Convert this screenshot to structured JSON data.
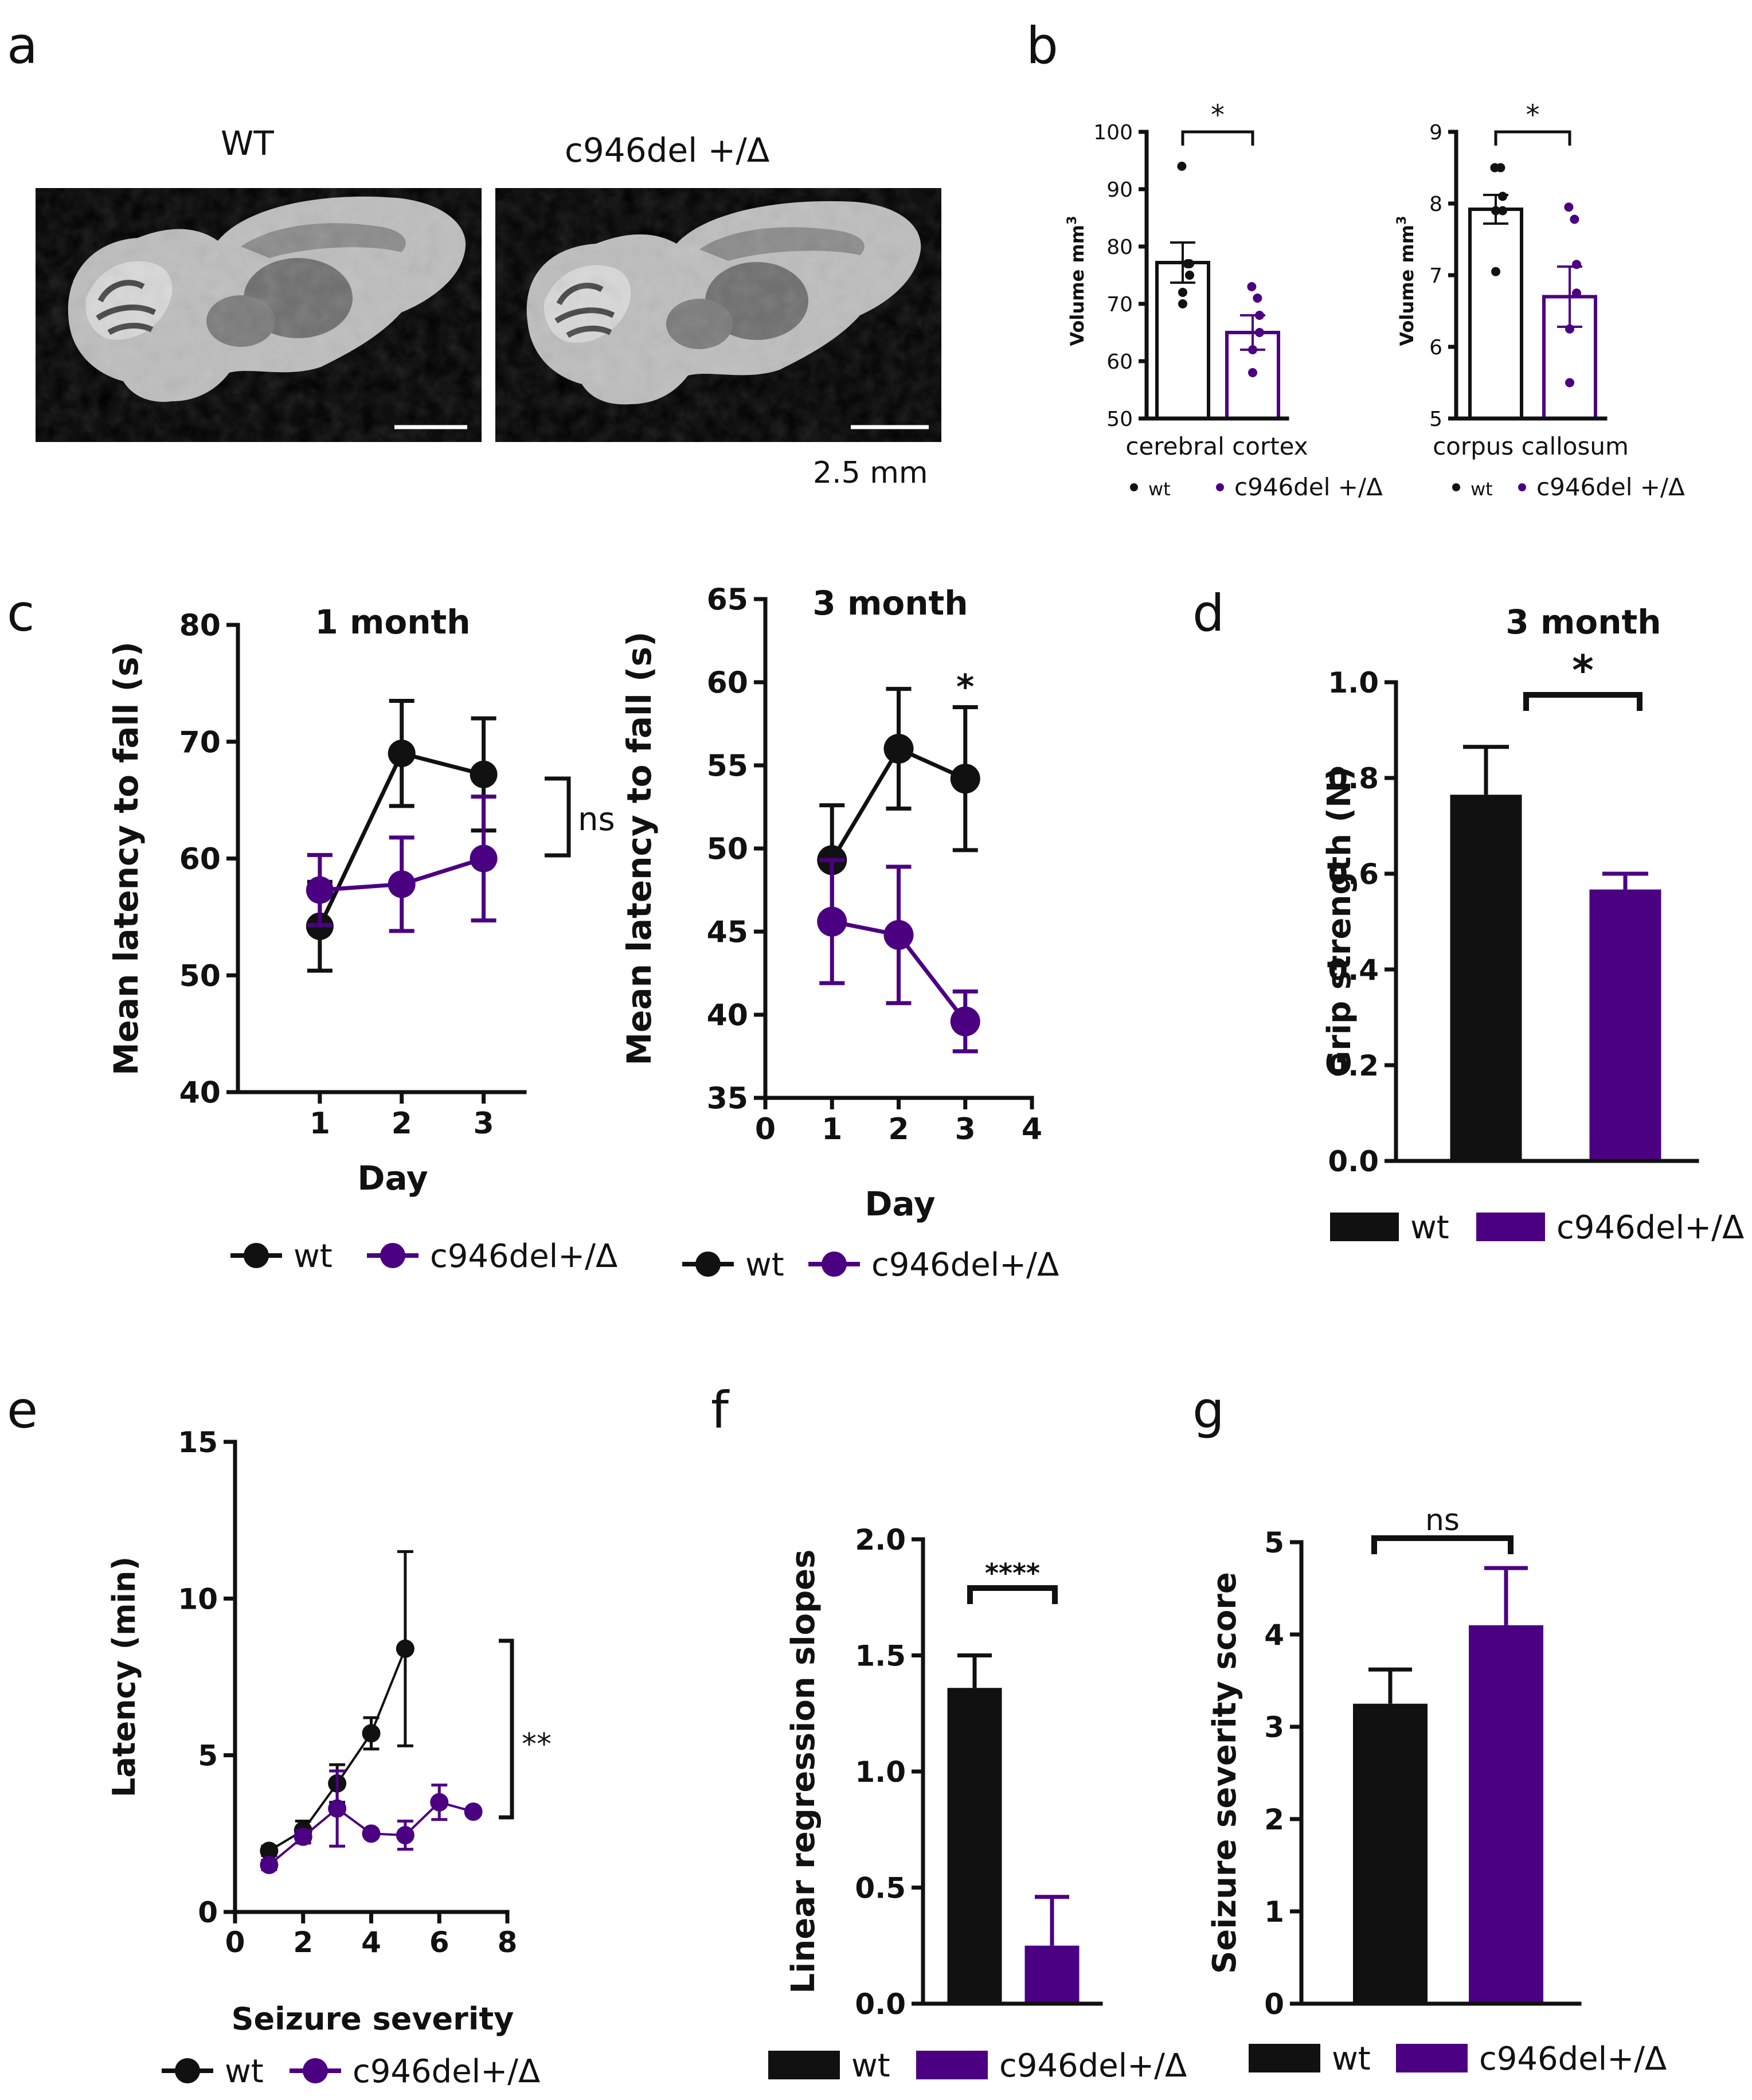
{
  "colors": {
    "wt": "#111111",
    "mut": "#4b0082",
    "mut_light": "#5b1e8c"
  },
  "panel_labels": {
    "a": "a",
    "b": "b",
    "c": "c",
    "d": "d",
    "e": "e",
    "f": "f",
    "g": "g"
  },
  "panel_a": {
    "left_title": "WT",
    "right_title": "c946del +/Δ",
    "scale_label": "2.5 mm"
  },
  "chart_data": [
    {
      "id": "b1",
      "type": "bar",
      "xlabel": "cerebral cortex",
      "ylabel": "Volume mm",
      "ylabel_sup": "3",
      "ylim": [
        50,
        100
      ],
      "yticks": [
        "50",
        "60",
        "70",
        "80",
        "90",
        "100"
      ],
      "categories": [
        "wt",
        "c946del +/Δ"
      ],
      "values": [
        77.2,
        65.0
      ],
      "errors": [
        3.5,
        3.0
      ],
      "points": [
        [
          94,
          77,
          77,
          75,
          72,
          70
        ],
        [
          73,
          71,
          68,
          65,
          62,
          58
        ]
      ],
      "significance": "*",
      "legend": [
        "wt",
        "c946del +/Δ"
      ]
    },
    {
      "id": "b2",
      "type": "bar",
      "xlabel": "corpus callosum",
      "ylabel": "Volume mm",
      "ylabel_sup": "3",
      "ylim": [
        5,
        9
      ],
      "yticks": [
        "5",
        "6",
        "7",
        "8",
        "9"
      ],
      "categories": [
        "wt",
        "c946del +/Δ"
      ],
      "values": [
        7.92,
        6.7
      ],
      "errors": [
        0.2,
        0.42
      ],
      "points": [
        [
          8.5,
          8.5,
          8.1,
          7.9,
          7.9,
          7.05
        ],
        [
          7.95,
          7.78,
          7.15,
          6.75,
          6.25,
          5.5
        ]
      ],
      "significance": "*",
      "legend": [
        "wt",
        "c946del +/Δ"
      ]
    },
    {
      "id": "c1",
      "type": "line",
      "title": "1 month",
      "xlabel": "Day",
      "ylabel": "Mean latency to fall (s)",
      "ylim": [
        40,
        80
      ],
      "yticks": [
        "40",
        "50",
        "60",
        "70",
        "80"
      ],
      "xlim": [
        0,
        3.5
      ],
      "xticks": [
        "1",
        "2",
        "3"
      ],
      "x": [
        1,
        2,
        3
      ],
      "series": [
        {
          "name": "wt",
          "values": [
            54.2,
            69.0,
            67.2
          ],
          "errors": [
            3.8,
            4.5,
            4.8
          ]
        },
        {
          "name": "c946del+/Δ",
          "values": [
            57.3,
            57.8,
            60.0
          ],
          "errors": [
            3.0,
            4.0,
            5.3
          ]
        }
      ],
      "significance": "ns",
      "legend": [
        "wt",
        "c946del+/Δ"
      ]
    },
    {
      "id": "c2",
      "type": "line",
      "title": "3 month",
      "xlabel": "Day",
      "ylabel": "Mean latency to fall (s)",
      "ylim": [
        35,
        65
      ],
      "yticks": [
        "35",
        "40",
        "45",
        "50",
        "55",
        "60",
        "65"
      ],
      "xlim": [
        0,
        4
      ],
      "xticks": [
        "0",
        "1",
        "2",
        "3",
        "4"
      ],
      "x": [
        1,
        2,
        3
      ],
      "series": [
        {
          "name": "wt",
          "values": [
            49.3,
            56.0,
            54.2
          ],
          "errors": [
            3.3,
            3.6,
            4.3
          ]
        },
        {
          "name": "c946del+/Δ",
          "values": [
            45.6,
            44.8,
            39.6
          ],
          "errors": [
            3.7,
            4.1,
            1.8
          ]
        }
      ],
      "significance": "*",
      "legend": [
        "wt",
        "c946del+/Δ"
      ]
    },
    {
      "id": "d",
      "type": "bar",
      "title": "3 month",
      "ylabel": "Grip strength (N)",
      "ylim": [
        0,
        1.0
      ],
      "yticks": [
        "0.0",
        "0.2",
        "0.4",
        "0.6",
        "0.8",
        "1.0"
      ],
      "categories": [
        "wt",
        "c946del+/Δ"
      ],
      "values": [
        0.765,
        0.567
      ],
      "errors": [
        0.1,
        0.033
      ],
      "significance": "*",
      "legend": [
        "wt",
        "c946del+/Δ"
      ]
    },
    {
      "id": "e",
      "type": "line",
      "xlabel": "Seizure severity",
      "ylabel": "Latency (min)",
      "ylim": [
        0,
        15
      ],
      "yticks": [
        "0",
        "5",
        "10",
        "15"
      ],
      "xlim": [
        0,
        8
      ],
      "xticks": [
        "0",
        "2",
        "4",
        "6",
        "8"
      ],
      "series": [
        {
          "name": "wt",
          "x": [
            1,
            2,
            3,
            4,
            5
          ],
          "values": [
            1.95,
            2.6,
            4.1,
            5.7,
            8.4
          ],
          "errors": [
            0.15,
            0.3,
            0.6,
            0.5,
            3.1
          ]
        },
        {
          "name": "c946del+/Δ",
          "x": [
            1,
            2,
            3,
            4,
            5,
            6,
            7
          ],
          "values": [
            1.5,
            2.4,
            3.3,
            2.5,
            2.45,
            3.5,
            3.2
          ],
          "errors": [
            0.15,
            0.2,
            1.2,
            0.1,
            0.45,
            0.55,
            0.1
          ]
        }
      ],
      "significance": "**",
      "legend": [
        "wt",
        "c946del+/Δ"
      ]
    },
    {
      "id": "f",
      "type": "bar",
      "ylabel": "Linear regression slopes",
      "ylim": [
        0,
        2.0
      ],
      "yticks": [
        "0.0",
        "0.5",
        "1.0",
        "1.5",
        "2.0"
      ],
      "categories": [
        "wt",
        "c946del+/Δ"
      ],
      "values": [
        1.36,
        0.25
      ],
      "errors": [
        0.14,
        0.21
      ],
      "significance": "****",
      "legend": [
        "wt",
        "c946del+/Δ"
      ]
    },
    {
      "id": "g",
      "type": "bar",
      "ylabel": "Seizure severity score",
      "ylim": [
        0,
        5
      ],
      "yticks": [
        "0",
        "1",
        "2",
        "3",
        "4",
        "5"
      ],
      "categories": [
        "wt",
        "c946del+/Δ"
      ],
      "values": [
        3.25,
        4.1
      ],
      "errors": [
        0.37,
        0.62
      ],
      "significance": "ns",
      "legend": [
        "wt",
        "c946del+/Δ"
      ]
    }
  ]
}
